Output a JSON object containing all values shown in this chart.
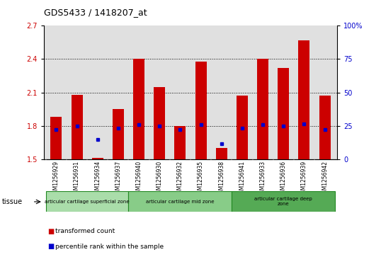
{
  "title": "GDS5433 / 1418207_at",
  "categories": [
    "GSM1256929",
    "GSM1256931",
    "GSM1256934",
    "GSM1256937",
    "GSM1256940",
    "GSM1256930",
    "GSM1256932",
    "GSM1256935",
    "GSM1256938",
    "GSM1256941",
    "GSM1256933",
    "GSM1256936",
    "GSM1256939",
    "GSM1256942"
  ],
  "bar_values": [
    1.88,
    2.08,
    1.51,
    1.95,
    2.4,
    2.15,
    1.8,
    2.38,
    1.6,
    2.07,
    2.4,
    2.32,
    2.57,
    2.07
  ],
  "blue_values": [
    1.77,
    1.8,
    1.68,
    1.78,
    1.81,
    1.8,
    1.77,
    1.81,
    1.64,
    1.78,
    1.81,
    1.8,
    1.82,
    1.77
  ],
  "bar_bottom": 1.5,
  "ylim_left": [
    1.5,
    2.7
  ],
  "ylim_right": [
    0,
    100
  ],
  "yticks_left": [
    1.5,
    1.8,
    2.1,
    2.4,
    2.7
  ],
  "yticks_right": [
    0,
    25,
    50,
    75,
    100
  ],
  "ytick_labels_right": [
    "0",
    "25",
    "50",
    "75",
    "100%"
  ],
  "bar_color": "#CC0000",
  "blue_color": "#0000CC",
  "bg_color": "#E0E0E0",
  "tissue_groups": [
    {
      "label": "articular cartilage superficial zone",
      "start": 0,
      "end": 4,
      "color": "#AADDAA"
    },
    {
      "label": "articular cartilage mid zone",
      "start": 4,
      "end": 9,
      "color": "#88CC88"
    },
    {
      "label": "articular cartilage deep\nzone",
      "start": 9,
      "end": 14,
      "color": "#55AA55"
    }
  ],
  "legend_items": [
    {
      "label": "transformed count",
      "color": "#CC0000"
    },
    {
      "label": "percentile rank within the sample",
      "color": "#0000CC"
    }
  ]
}
